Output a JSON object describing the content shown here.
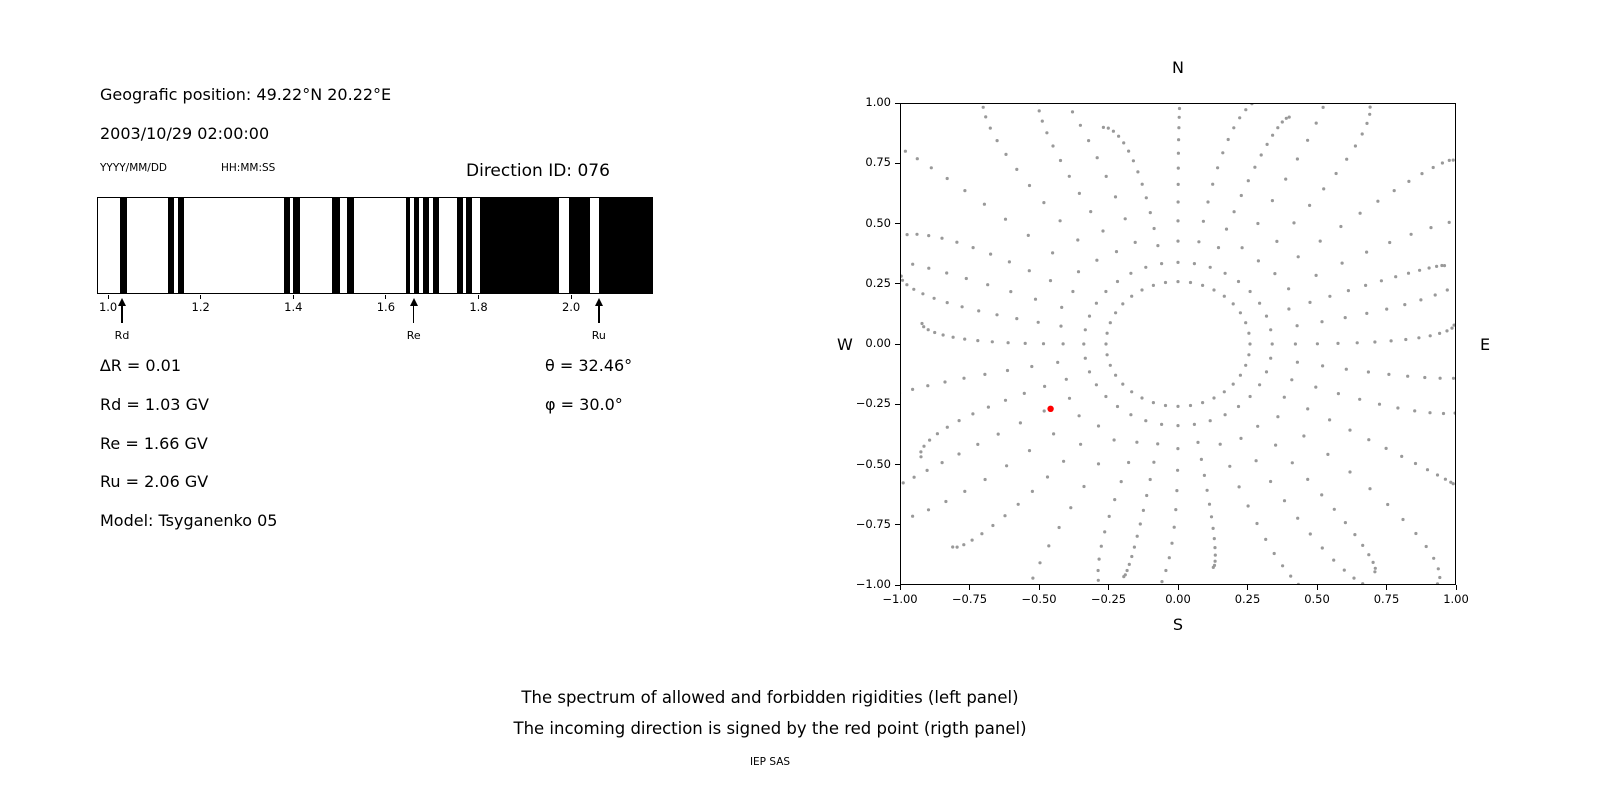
{
  "left_panel": {
    "position": "Geografic position: 49.22°N 20.22°E",
    "datetime": "2003/10/29 02:00:00",
    "date_format": "YYYY/MM/DD",
    "time_format": "HH:MM:SS",
    "direction_id": "Direction ID: 076",
    "delta_r": "∆R = 0.01",
    "theta": "θ = 32.46°",
    "rd": "Rd = 1.03 GV",
    "phi": "φ = 30.0°",
    "re": "Re = 1.66 GV",
    "ru": "Ru = 2.06 GV",
    "model": "Model: Tsyganenko 05"
  },
  "right_panel": {
    "compass": {
      "north": "N",
      "east": "E",
      "south": "S",
      "west": "W"
    }
  },
  "caption": {
    "line1": "The spectrum of allowed and forbidden rigidities (left panel)",
    "line2": "The incoming direction is signed by the red point (rigth panel)",
    "credit": "IEP SAS"
  },
  "chart_data": [
    {
      "type": "bar",
      "description": "Cutoff rigidity spectrum: white = allowed, black = forbidden rigidity bands",
      "xlim": [
        0.976,
        2.177
      ],
      "xticks": [
        {
          "v": 1.0,
          "label": "1.0"
        },
        {
          "v": 1.2,
          "label": "1.2"
        },
        {
          "v": 1.4,
          "label": "1.4"
        },
        {
          "v": 1.6,
          "label": "1.6"
        },
        {
          "v": 1.8,
          "label": "1.8"
        },
        {
          "v": 2.0,
          "label": "2.0"
        }
      ],
      "band_color": "#000000",
      "forbidden_bands": [
        [
          1.024,
          1.039
        ],
        [
          1.128,
          1.141
        ],
        [
          1.149,
          1.162
        ],
        [
          1.377,
          1.392
        ],
        [
          1.398,
          1.413
        ],
        [
          1.481,
          1.498
        ],
        [
          1.513,
          1.53
        ],
        [
          1.641,
          1.651
        ],
        [
          1.658,
          1.669
        ],
        [
          1.677,
          1.69
        ],
        [
          1.699,
          1.712
        ],
        [
          1.751,
          1.764
        ],
        [
          1.77,
          1.783
        ],
        [
          1.801,
          1.972
        ],
        [
          1.993,
          2.039
        ],
        [
          2.058,
          2.177
        ]
      ],
      "markers": [
        {
          "label": "Rd",
          "x": 1.03
        },
        {
          "label": "Re",
          "x": 1.66
        },
        {
          "label": "Ru",
          "x": 2.06
        }
      ]
    },
    {
      "type": "scatter",
      "description": "Asymptotic directions map with compass labels; incoming direction marked by red point",
      "xlim": [
        -1,
        1
      ],
      "ylim": [
        -1,
        1
      ],
      "xticks": [
        {
          "v": -1.0,
          "label": "−1.00"
        },
        {
          "v": -0.75,
          "label": "−0.75"
        },
        {
          "v": -0.5,
          "label": "−0.50"
        },
        {
          "v": -0.25,
          "label": "−0.25"
        },
        {
          "v": 0.0,
          "label": "0.00"
        },
        {
          "v": 0.25,
          "label": "0.25"
        },
        {
          "v": 0.5,
          "label": "0.50"
        },
        {
          "v": 0.75,
          "label": "0.75"
        },
        {
          "v": 1.0,
          "label": "1.00"
        }
      ],
      "yticks": [
        {
          "v": 1.0,
          "label": "1.00"
        },
        {
          "v": 0.75,
          "label": "0.75"
        },
        {
          "v": 0.5,
          "label": "0.50"
        },
        {
          "v": 0.25,
          "label": "0.25"
        },
        {
          "v": 0.0,
          "label": "0.00"
        },
        {
          "v": -0.25,
          "label": "−0.25"
        },
        {
          "v": -0.5,
          "label": "−0.50"
        },
        {
          "v": -0.75,
          "label": "−0.75"
        },
        {
          "v": -1.0,
          "label": "−1.00"
        }
      ],
      "dot_color": "#999999",
      "red_point": {
        "x": -0.46,
        "y": -0.27,
        "color": "#ff0000",
        "radius": 3.2
      },
      "pattern": {
        "spoke_count": 36,
        "ring_radius": 0.26,
        "r_start": 0.34,
        "r_end_base": 1.0,
        "r_end_var": 0.1,
        "diag_boost": 0.28,
        "points_per_spoke": 14,
        "cluster_exp": 1.7,
        "curve_deg": 7,
        "dot_radius": 1.6
      }
    }
  ]
}
